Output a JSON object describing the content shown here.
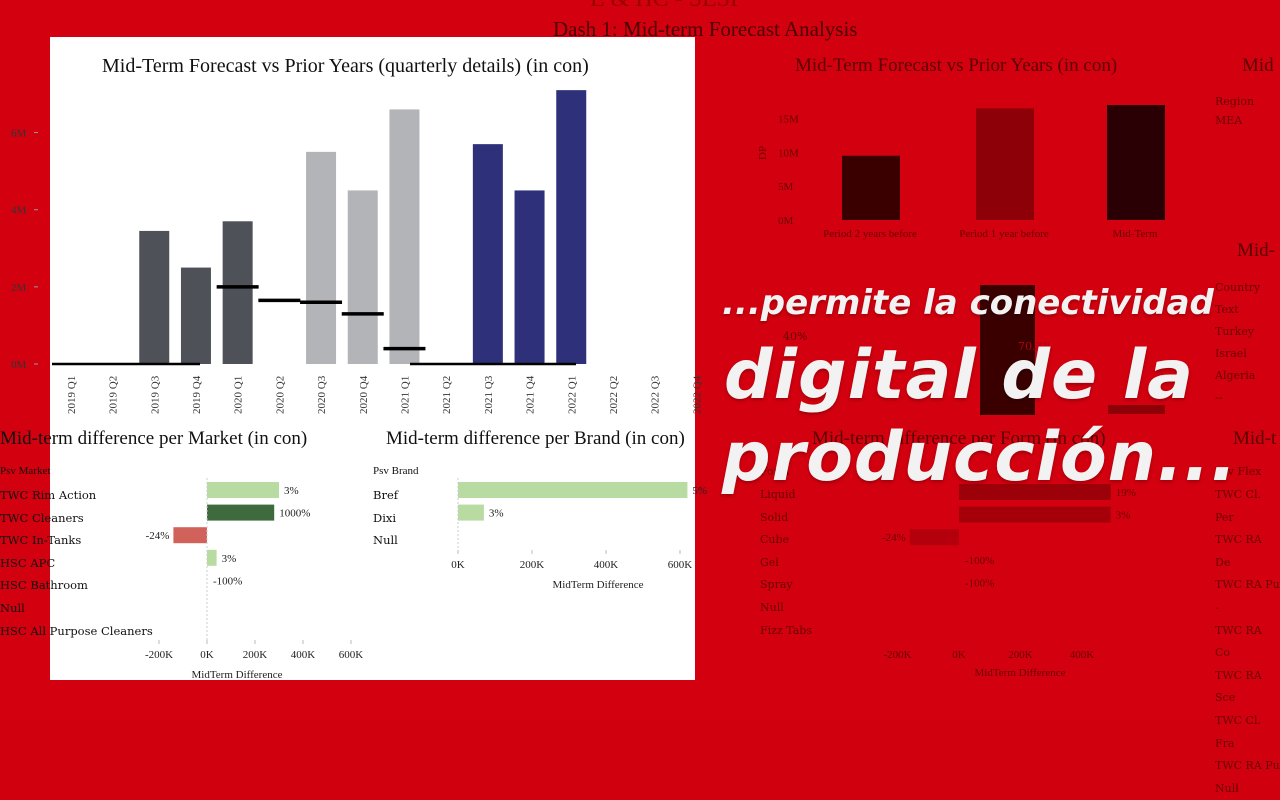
{
  "dashboard": {
    "top_title_partial": "E & HC - SESP",
    "title": "Dash 1: Mid-term Forecast Analysis"
  },
  "main_chart": {
    "title": "Mid-Term Forecast vs Prior Years (quarterly details) (in con)",
    "ylabels": [
      "6M",
      "4M",
      "2M",
      "0M"
    ],
    "ylim": [
      0,
      7000000
    ]
  },
  "chart_data": [
    {
      "type": "bar",
      "title": "Mid-Term Forecast vs Prior Years (quarterly details) (in con)",
      "categories": [
        "2019 Q1",
        "2019 Q2",
        "2019 Q3",
        "2019 Q4",
        "2020 Q1",
        "2020 Q2",
        "2020 Q3",
        "2020 Q4",
        "2021 Q1",
        "2021 Q2",
        "2021 Q3",
        "2021 Q4",
        "2022 Q1",
        "2022 Q2",
        "2022 Q3",
        "2022 Q4"
      ],
      "values": [
        0,
        0,
        3450000,
        2500000,
        3700000,
        0,
        5500000,
        4500000,
        6600000,
        0,
        5700000,
        4500000,
        7100000,
        0,
        0,
        0
      ],
      "groups": [
        "dark",
        "dark",
        "dark",
        "dark",
        "dark",
        "gray",
        "gray",
        "gray",
        "gray",
        "gray",
        "blue",
        "blue",
        "blue",
        "blue",
        "blue",
        "blue"
      ],
      "reference_lines": [
        null,
        null,
        null,
        null,
        2000000,
        1650000,
        1600000,
        1300000,
        400000,
        null,
        null,
        null,
        null,
        null,
        null,
        null
      ],
      "ylim": [
        0,
        7000000
      ],
      "colors": {
        "dark": "#4e5258",
        "gray": "#b3b4b8",
        "blue": "#2e307a",
        "ref": "#000000"
      }
    },
    {
      "type": "bar",
      "title": "Mid-term difference per Market (in con)",
      "orientation": "horizontal",
      "header": "Psv Market",
      "categories": [
        "TWC Rim Action",
        "TWC Cleaners",
        "TWC In-Tanks",
        "HSC APC",
        "HSC Bathroom",
        "Null",
        "HSC All Purpose Cleaners"
      ],
      "values": [
        300000,
        280000,
        -140000,
        40000,
        0,
        0,
        0
      ],
      "data_labels": [
        "3%",
        "1000%",
        "-24%",
        "3%",
        "-100%",
        "",
        ""
      ],
      "bar_colors": [
        "#b8dba2",
        "#3e6a3d",
        "#d0625b",
        "#b8dba2",
        "#ffffff",
        "#ffffff",
        "#ffffff"
      ],
      "xlabel": "MidTerm Difference",
      "xticks": [
        "-200K",
        "0K",
        "200K",
        "400K",
        "600K"
      ],
      "xlim": [
        -200000,
        600000
      ]
    },
    {
      "type": "bar",
      "title": "Mid-term difference per Brand (in con)",
      "orientation": "horizontal",
      "header": "Psv Brand",
      "categories": [
        "Bref",
        "Dixi",
        "Null"
      ],
      "values": [
        620000,
        70000,
        0
      ],
      "data_labels": [
        "5%",
        "3%",
        ""
      ],
      "bar_colors": [
        "#b8dba2",
        "#b8dba2",
        "#ffffff"
      ],
      "xlabel": "MidTerm Difference",
      "xticks": [
        "0K",
        "200K",
        "400K",
        "600K"
      ],
      "xlim": [
        0,
        650000
      ]
    }
  ],
  "right_ghost": {
    "chart1_title": "Mid-Term Forecast vs Prior Years (in con)",
    "chart1_yticks": [
      "15M",
      "10M",
      "5M",
      "0M"
    ],
    "chart1_ylabel": "DP",
    "chart1_categories": [
      "Period 2 years before",
      "Period 1 year before",
      "Mid-Term"
    ],
    "chart1_values": [
      9500000,
      16500000,
      17000000
    ],
    "chart1_colors": [
      "#3a0000",
      "#8e0008",
      "#2a0005"
    ],
    "col3_title_partial": "Mid",
    "col3_rows": [
      "Region",
      "MEA"
    ],
    "col3b_title_partial": "Mid-",
    "col3b_rows": [
      "Country Text",
      "Turkey",
      "Israel",
      "Algeria",
      "--"
    ],
    "mid_percent": "40%",
    "mid_pct2": "70.3%",
    "form_title": "Mid-term difference per Form (in con)",
    "form_header": "Form",
    "form_rows": [
      "Liquid",
      "Solid",
      "Cube",
      "Gel",
      "Spray",
      "Null",
      "Fizz Tabs"
    ],
    "form_labels": [
      "19%",
      "3%",
      "-24%",
      "-100%",
      "-100%",
      "",
      ""
    ],
    "form_xticks": [
      "-200K",
      "0K",
      "200K",
      "400K"
    ],
    "form_xlabel": "MidTerm Difference",
    "flex_title_partial": "Mid-t",
    "flex_header": "Psv Flex",
    "flex_rows": [
      "TWC Cl. Per",
      "TWC RA De",
      "TWC RA Pu",
      "-",
      "TWC RA Co",
      "TWC RA Sce",
      "TWC Cl. Fra",
      "TWC RA Pu",
      "Null"
    ]
  },
  "overlay": {
    "line1": "...permite la conectividad",
    "line2": "digital de la",
    "line3": "producción..."
  }
}
